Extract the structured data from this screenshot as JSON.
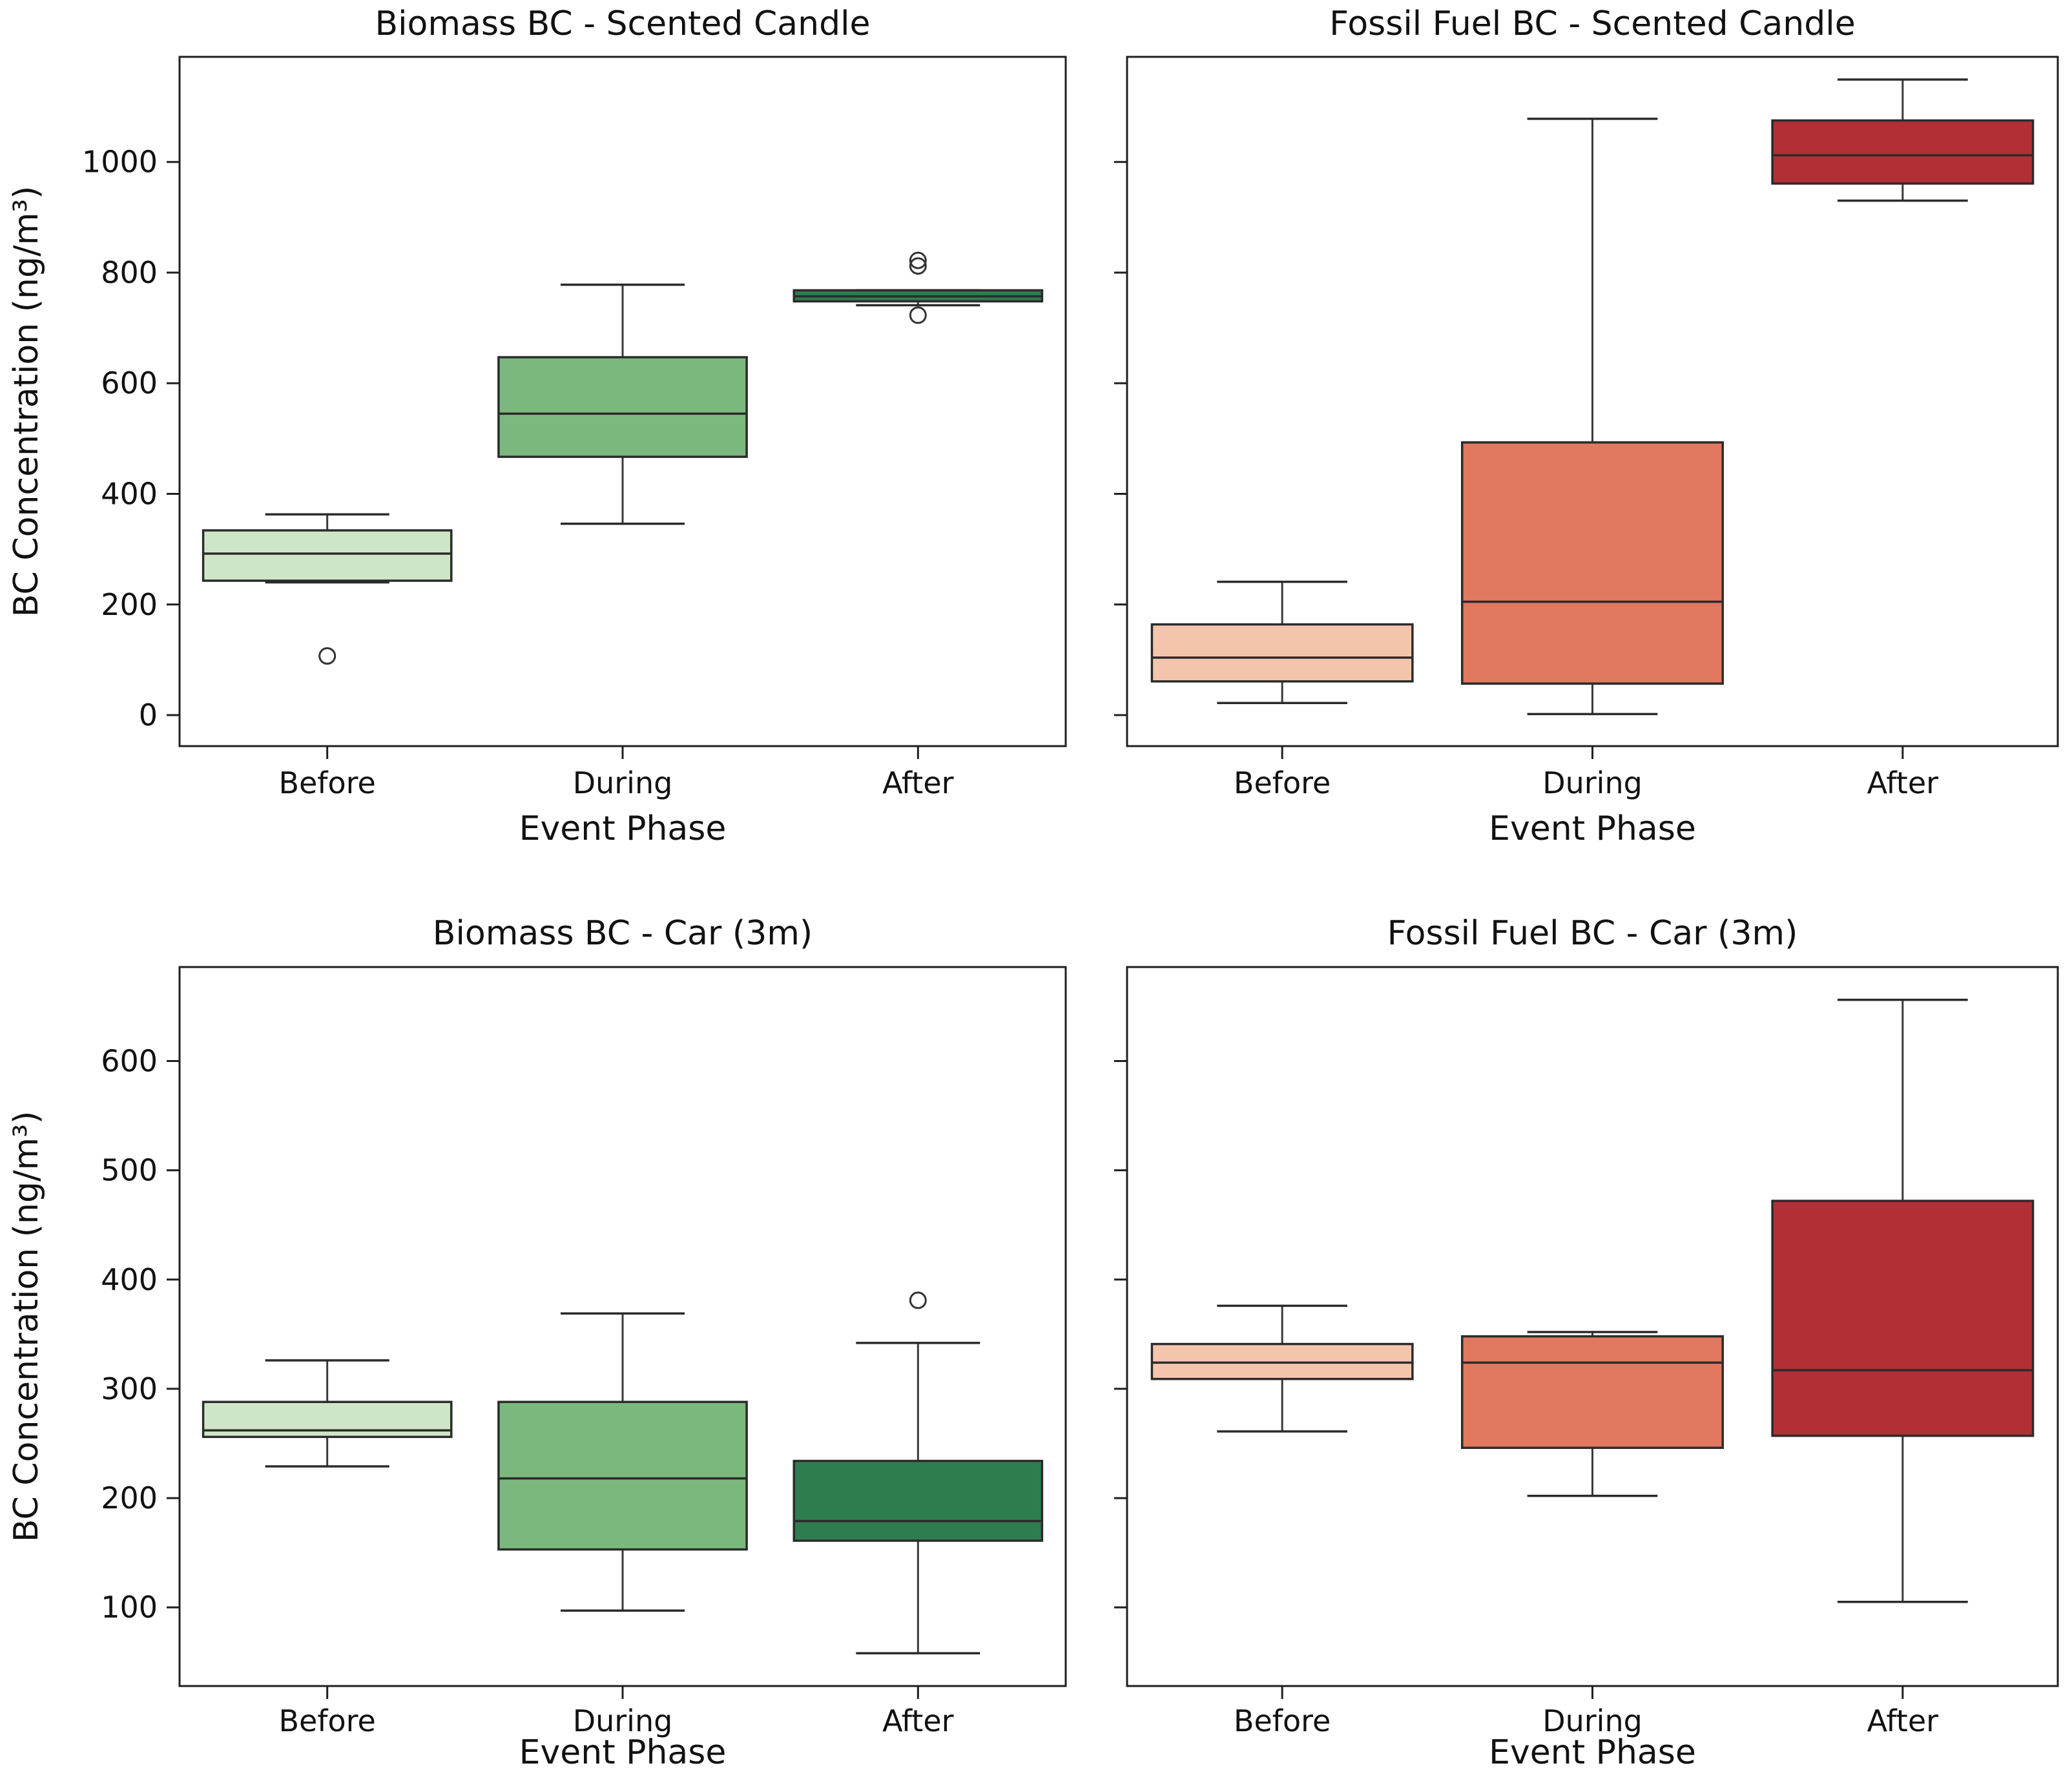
{
  "axes_shared": {
    "x_label": "Event Phase",
    "y_label": "BC Concentration (ng/m³)",
    "categories": [
      "Before",
      "During",
      "After"
    ]
  },
  "style": {
    "background": "#ffffff",
    "spine_color": "#1f1f1f",
    "box_edge_color": "#2b2b2b",
    "whisker_color": "#3a3a3a",
    "outlier_color": "#333333",
    "palette_biomass": [
      "#cfe5c7",
      "#7bb87d",
      "#2e7d4f"
    ],
    "palette_fossil": [
      "#f4c5ad",
      "#e17860",
      "#b22f35"
    ]
  },
  "chart_data": [
    {
      "type": "box",
      "title": "Biomass BC - Scented Candle",
      "ylim": [
        -56,
        1190
      ],
      "yticks": [
        0,
        200,
        400,
        600,
        800,
        1000
      ],
      "show_ytick_labels": true,
      "show_ylabel": true,
      "boxes": [
        {
          "category": "Before",
          "fill": "#cfe5c7",
          "whislo": 240,
          "q1": 243,
          "med": 292,
          "q3": 334,
          "whishi": 363,
          "outliers": [
            107
          ]
        },
        {
          "category": "During",
          "fill": "#7bb87d",
          "whislo": 346,
          "q1": 467,
          "med": 545,
          "q3": 647,
          "whishi": 778,
          "outliers": []
        },
        {
          "category": "After",
          "fill": "#2e7d4f",
          "whislo": 741,
          "q1": 748,
          "med": 757,
          "q3": 768,
          "whishi": 768,
          "outliers": [
            812,
            822,
            723
          ]
        }
      ]
    },
    {
      "type": "box",
      "title": "Fossil Fuel BC - Scented Candle",
      "ylim": [
        -56,
        1190
      ],
      "yticks": [
        0,
        200,
        400,
        600,
        800,
        1000
      ],
      "show_ytick_labels": false,
      "show_ylabel": false,
      "boxes": [
        {
          "category": "Before",
          "fill": "#f4c5ad",
          "whislo": 22,
          "q1": 61,
          "med": 104,
          "q3": 164,
          "whishi": 241,
          "outliers": []
        },
        {
          "category": "During",
          "fill": "#e17860",
          "whislo": 2,
          "q1": 57,
          "med": 205,
          "q3": 493,
          "whishi": 1078,
          "outliers": []
        },
        {
          "category": "After",
          "fill": "#b22f35",
          "whislo": 930,
          "q1": 961,
          "med": 1012,
          "q3": 1075,
          "whishi": 1149,
          "outliers": []
        }
      ]
    },
    {
      "type": "box",
      "title": "Biomass BC - Car (3m)",
      "ylim": [
        28,
        686
      ],
      "yticks": [
        100,
        200,
        300,
        400,
        500,
        600
      ],
      "show_ytick_labels": true,
      "show_ylabel": true,
      "boxes": [
        {
          "category": "Before",
          "fill": "#cfe5c7",
          "whislo": 229,
          "q1": 256,
          "med": 262,
          "q3": 288,
          "whishi": 326,
          "outliers": []
        },
        {
          "category": "During",
          "fill": "#7bb87d",
          "whislo": 97,
          "q1": 153,
          "med": 218,
          "q3": 288,
          "whishi": 369,
          "outliers": []
        },
        {
          "category": "After",
          "fill": "#2e7d4f",
          "whislo": 58,
          "q1": 161,
          "med": 179,
          "q3": 234,
          "whishi": 342,
          "outliers": [
            381
          ]
        }
      ]
    },
    {
      "type": "box",
      "title": "Fossil Fuel BC - Car (3m)",
      "ylim": [
        28,
        686
      ],
      "yticks": [
        100,
        200,
        300,
        400,
        500,
        600
      ],
      "show_ytick_labels": false,
      "show_ylabel": false,
      "boxes": [
        {
          "category": "Before",
          "fill": "#f4c5ad",
          "whislo": 261,
          "q1": 309,
          "med": 324,
          "q3": 341,
          "whishi": 376,
          "outliers": []
        },
        {
          "category": "During",
          "fill": "#e17860",
          "whislo": 202,
          "q1": 246,
          "med": 324,
          "q3": 348,
          "whishi": 352,
          "outliers": []
        },
        {
          "category": "After",
          "fill": "#b22f35",
          "whislo": 105,
          "q1": 257,
          "med": 317,
          "q3": 472,
          "whishi": 656,
          "outliers": []
        }
      ]
    }
  ]
}
